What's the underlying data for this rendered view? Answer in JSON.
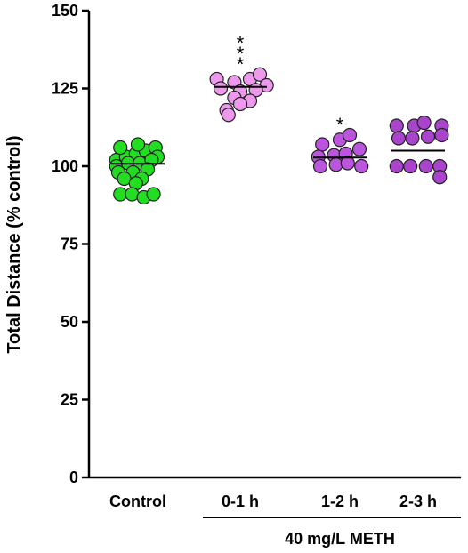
{
  "chart_data": {
    "type": "scatter",
    "ylabel": "Total Distance (% control)",
    "ylim": [
      0,
      150
    ],
    "yticks": [
      "0",
      "25",
      "50",
      "75",
      "100",
      "125",
      "150"
    ],
    "categories": [
      "Control",
      "0-1 h",
      "1-2 h",
      "2-3 h"
    ],
    "group_label": "40 mg/L METH",
    "grid": false,
    "series": [
      {
        "category": "Control",
        "color": "#22dd22",
        "mean": 100.8,
        "significance": "",
        "points": [
          {
            "x": -0.22,
            "y": 102
          },
          {
            "x": -0.12,
            "y": 103
          },
          {
            "x": -0.02,
            "y": 104
          },
          {
            "x": 0.08,
            "y": 105
          },
          {
            "x": 0.18,
            "y": 106
          },
          {
            "x": -0.18,
            "y": 106
          },
          {
            "x": 0.0,
            "y": 107
          },
          {
            "x": 0.2,
            "y": 103
          },
          {
            "x": -0.22,
            "y": 100
          },
          {
            "x": -0.1,
            "y": 101
          },
          {
            "x": 0.02,
            "y": 101
          },
          {
            "x": 0.14,
            "y": 102
          },
          {
            "x": -0.2,
            "y": 98
          },
          {
            "x": -0.05,
            "y": 98
          },
          {
            "x": 0.1,
            "y": 99
          },
          {
            "x": -0.14,
            "y": 96
          },
          {
            "x": 0.04,
            "y": 96
          },
          {
            "x": -0.02,
            "y": 94.5
          },
          {
            "x": -0.18,
            "y": 91
          },
          {
            "x": -0.06,
            "y": 91
          },
          {
            "x": 0.06,
            "y": 90
          },
          {
            "x": 0.16,
            "y": 91
          }
        ]
      },
      {
        "category": "0-1 h",
        "color": "#ee99ee",
        "mean": 125.5,
        "significance": "***",
        "points": [
          {
            "x": -0.24,
            "y": 128
          },
          {
            "x": -0.06,
            "y": 127
          },
          {
            "x": 0.1,
            "y": 128
          },
          {
            "x": 0.2,
            "y": 129.5
          },
          {
            "x": 0.27,
            "y": 126
          },
          {
            "x": -0.2,
            "y": 125
          },
          {
            "x": 0.0,
            "y": 124
          },
          {
            "x": 0.16,
            "y": 124.5
          },
          {
            "x": -0.06,
            "y": 122
          },
          {
            "x": 0.1,
            "y": 121
          },
          {
            "x": -0.14,
            "y": 118
          },
          {
            "x": 0.0,
            "y": 120
          },
          {
            "x": -0.12,
            "y": 116.5
          }
        ]
      },
      {
        "category": "1-2 h",
        "color": "#bb55dd",
        "mean": 102.8,
        "significance": "*",
        "points": [
          {
            "x": -0.18,
            "y": 107
          },
          {
            "x": 0.0,
            "y": 108.5
          },
          {
            "x": 0.1,
            "y": 110
          },
          {
            "x": -0.22,
            "y": 103
          },
          {
            "x": -0.06,
            "y": 103.5
          },
          {
            "x": 0.06,
            "y": 104
          },
          {
            "x": 0.2,
            "y": 105.5
          },
          {
            "x": -0.2,
            "y": 100
          },
          {
            "x": -0.04,
            "y": 100.5
          },
          {
            "x": 0.08,
            "y": 101
          },
          {
            "x": 0.22,
            "y": 100
          }
        ]
      },
      {
        "category": "2-3 h",
        "color": "#aa44cc",
        "mean": 105,
        "significance": "",
        "points": [
          {
            "x": -0.22,
            "y": 113
          },
          {
            "x": -0.04,
            "y": 113
          },
          {
            "x": 0.06,
            "y": 114
          },
          {
            "x": 0.24,
            "y": 113
          },
          {
            "x": -0.2,
            "y": 109
          },
          {
            "x": -0.06,
            "y": 109
          },
          {
            "x": 0.1,
            "y": 109.5
          },
          {
            "x": 0.24,
            "y": 110
          },
          {
            "x": -0.22,
            "y": 100
          },
          {
            "x": -0.08,
            "y": 100
          },
          {
            "x": 0.08,
            "y": 100
          },
          {
            "x": 0.22,
            "y": 100
          },
          {
            "x": 0.22,
            "y": 96.5
          }
        ]
      }
    ]
  }
}
